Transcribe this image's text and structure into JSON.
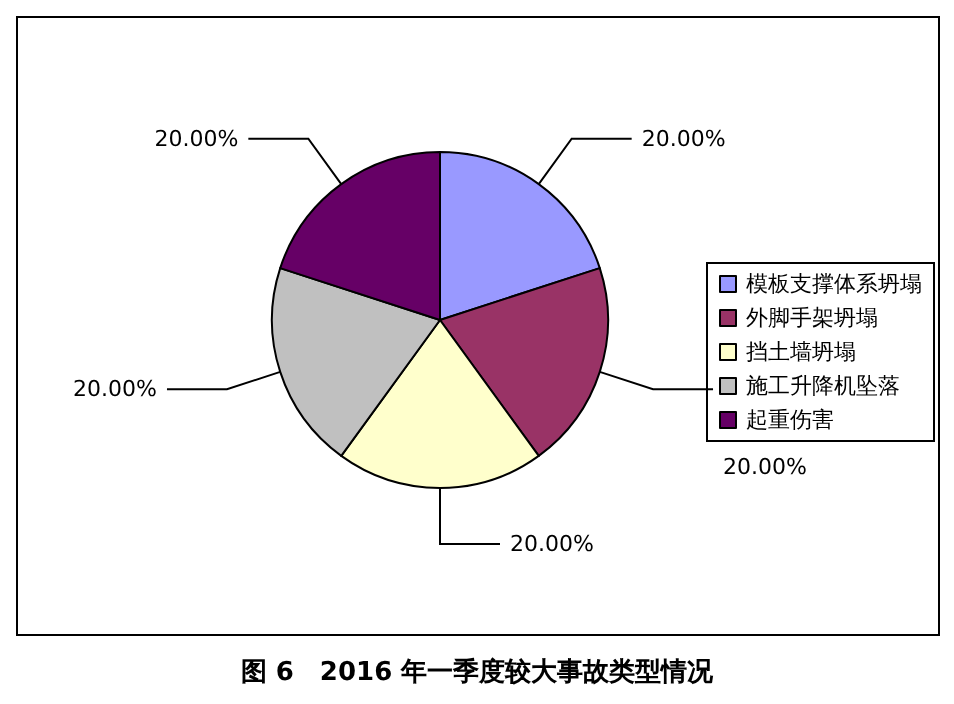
{
  "chart_data": {
    "type": "pie",
    "title": "图 6　2016 年一季度较大事故类型情况",
    "categories": [
      "模板支撑体系坍塌",
      "外脚手架坍塌",
      "挡土墙坍塌",
      "施工升降机坠落",
      "起重伤害"
    ],
    "values": [
      20,
      20,
      20,
      20,
      20
    ],
    "colors": [
      "#9999ff",
      "#993366",
      "#ffffcc",
      "#c0c0c0",
      "#660066"
    ],
    "value_labels": [
      "20.00%",
      "20.00%",
      "20.00%",
      "20.00%",
      "20.00%"
    ],
    "legend": "right"
  }
}
